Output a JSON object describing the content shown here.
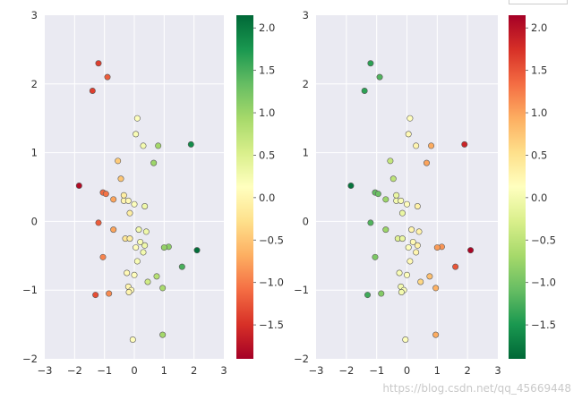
{
  "chart_data": [
    {
      "type": "scatter",
      "name": "left",
      "title": "",
      "xlabel": "",
      "ylabel": "",
      "xlim": [
        -3,
        3
      ],
      "ylim": [
        -2,
        3
      ],
      "xticks": [
        "−3",
        "−2",
        "−1",
        "0",
        "1",
        "2",
        "3"
      ],
      "yticks": [
        "−2",
        "−1",
        "0",
        "1",
        "2",
        "3"
      ],
      "colormap": "RdYlGn",
      "colorbar": {
        "range": [
          -1.9,
          2.15
        ],
        "ticks": [
          "2.0",
          "1.5",
          "1.0",
          "0.5",
          "0.0",
          "−0.5",
          "−1.0",
          "−1.5"
        ],
        "tick_values": [
          2.0,
          1.5,
          1.0,
          0.5,
          0.0,
          -0.5,
          -1.0,
          -1.5
        ],
        "top_color": "#006837",
        "bottom_color": "#a50026"
      }
    },
    {
      "type": "scatter",
      "name": "right",
      "title": "",
      "xlabel": "",
      "ylabel": "",
      "xlim": [
        -3,
        3
      ],
      "ylim": [
        -2,
        3
      ],
      "xticks": [
        "−3",
        "−2",
        "−1",
        "0",
        "1",
        "2",
        "3"
      ],
      "yticks": [
        "−2",
        "−1",
        "0",
        "1",
        "2",
        "3"
      ],
      "colormap": "RdYlGn_r",
      "colorbar": {
        "range": [
          -1.9,
          2.15
        ],
        "ticks": [
          "2.0",
          "1.5",
          "1.0",
          "0.5",
          "0.0",
          "−0.5",
          "−1.0",
          "−1.5"
        ],
        "tick_values": [
          2.0,
          1.5,
          1.0,
          0.5,
          0.0,
          -0.5,
          -1.0,
          -1.5
        ],
        "top_color": "#a50026",
        "bottom_color": "#006837"
      }
    }
  ],
  "points": [
    {
      "x": -1.2,
      "y": 2.3,
      "c": -1.4
    },
    {
      "x": -0.9,
      "y": 2.1,
      "c": -1.2
    },
    {
      "x": -1.4,
      "y": 1.9,
      "c": -1.4
    },
    {
      "x": 0.1,
      "y": 1.5,
      "c": 0.15
    },
    {
      "x": 0.05,
      "y": 1.27,
      "c": 0.2
    },
    {
      "x": 0.3,
      "y": 1.1,
      "c": 0.25
    },
    {
      "x": 0.8,
      "y": 1.1,
      "c": 0.95
    },
    {
      "x": 1.9,
      "y": 1.12,
      "c": 1.85
    },
    {
      "x": -0.55,
      "y": 0.88,
      "c": -0.45
    },
    {
      "x": 0.65,
      "y": 0.85,
      "c": 1.0
    },
    {
      "x": -0.45,
      "y": 0.62,
      "c": -0.5
    },
    {
      "x": -1.85,
      "y": 0.52,
      "c": -1.8
    },
    {
      "x": -1.05,
      "y": 0.42,
      "c": -1.1
    },
    {
      "x": -0.95,
      "y": 0.4,
      "c": -1.05
    },
    {
      "x": -0.35,
      "y": 0.38,
      "c": -0.1
    },
    {
      "x": -0.7,
      "y": 0.32,
      "c": -0.75
    },
    {
      "x": -0.35,
      "y": 0.3,
      "c": 0.0
    },
    {
      "x": -0.2,
      "y": 0.3,
      "c": 0.05
    },
    {
      "x": 0.0,
      "y": 0.25,
      "c": 0.15
    },
    {
      "x": 0.35,
      "y": 0.22,
      "c": 0.3
    },
    {
      "x": -0.15,
      "y": 0.12,
      "c": -0.1
    },
    {
      "x": -1.2,
      "y": -0.02,
      "c": -1.2
    },
    {
      "x": -0.7,
      "y": -0.12,
      "c": -0.75
    },
    {
      "x": 0.15,
      "y": -0.12,
      "c": 0.25
    },
    {
      "x": 0.4,
      "y": -0.15,
      "c": 0.3
    },
    {
      "x": -0.3,
      "y": -0.25,
      "c": -0.2
    },
    {
      "x": -0.15,
      "y": -0.25,
      "c": -0.1
    },
    {
      "x": 0.2,
      "y": -0.3,
      "c": 0.2
    },
    {
      "x": 0.35,
      "y": -0.35,
      "c": 0.3
    },
    {
      "x": 1.15,
      "y": -0.37,
      "c": 1.1
    },
    {
      "x": 1.0,
      "y": -0.38,
      "c": 1.05
    },
    {
      "x": 0.05,
      "y": -0.38,
      "c": 0.1
    },
    {
      "x": 0.3,
      "y": -0.45,
      "c": 0.25
    },
    {
      "x": 2.1,
      "y": -0.42,
      "c": 2.1
    },
    {
      "x": -1.05,
      "y": -0.52,
      "c": -0.95
    },
    {
      "x": 0.1,
      "y": -0.58,
      "c": 0.2
    },
    {
      "x": 1.6,
      "y": -0.66,
      "c": 1.5
    },
    {
      "x": -0.25,
      "y": -0.75,
      "c": 0.05
    },
    {
      "x": 0.0,
      "y": -0.78,
      "c": 0.1
    },
    {
      "x": 0.75,
      "y": -0.8,
      "c": 0.8
    },
    {
      "x": 0.45,
      "y": -0.88,
      "c": 0.6
    },
    {
      "x": -0.2,
      "y": -0.95,
      "c": 0.0
    },
    {
      "x": 0.95,
      "y": -0.97,
      "c": 0.9
    },
    {
      "x": -0.1,
      "y": -1.0,
      "c": 0.05
    },
    {
      "x": -0.18,
      "y": -1.03,
      "c": 0.0
    },
    {
      "x": -0.85,
      "y": -1.05,
      "c": -0.9
    },
    {
      "x": -1.3,
      "y": -1.07,
      "c": -1.3
    },
    {
      "x": 0.95,
      "y": -1.65,
      "c": 0.95
    },
    {
      "x": -0.05,
      "y": -1.72,
      "c": 0.1
    }
  ],
  "watermark": "https://blog.csdn.net/qq_45669448"
}
